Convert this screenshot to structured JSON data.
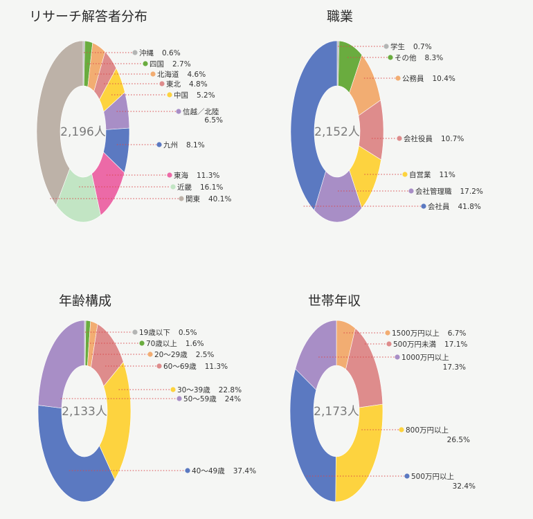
{
  "chart_data": [
    {
      "type": "pie",
      "title": "リサーチ解答者分布",
      "total_label": "2,196人",
      "categories": [
        "沖縄",
        "四国",
        "北海道",
        "東北",
        "中国",
        "信越／北陸",
        "九州",
        "東海",
        "近畿",
        "関東"
      ],
      "values": [
        0.6,
        2.7,
        4.6,
        4.8,
        5.2,
        6.5,
        8.1,
        11.3,
        16.1,
        40.1
      ],
      "value_labels": [
        "0.6%",
        "2.7%",
        "4.6%",
        "4.8%",
        "5.2%",
        "6.5%",
        "8.1%",
        "11.3%",
        "16.1%",
        "40.1%"
      ],
      "colors": [
        "#b3b5b4",
        "#6aac3f",
        "#f2ad72",
        "#de8c8c",
        "#fdd33f",
        "#a88ec6",
        "#5b79c1",
        "#ec6aa7",
        "#c2e5c4",
        "#bdb2a8"
      ],
      "legend_placement": "right"
    },
    {
      "type": "pie",
      "title": "職業",
      "total_label": "2,152人",
      "categories": [
        "学生",
        "その他",
        "公務員",
        "会社役員",
        "自営業",
        "会社管理職",
        "会社員"
      ],
      "values": [
        0.7,
        8.3,
        10.4,
        10.7,
        11,
        17.2,
        41.8
      ],
      "value_labels": [
        "0.7%",
        "8.3%",
        "10.4%",
        "10.7%",
        "11%",
        "17.2%",
        "41.8%"
      ],
      "colors": [
        "#b3b5b4",
        "#6aac3f",
        "#f2ad72",
        "#de8c8c",
        "#fdd33f",
        "#a88ec6",
        "#5b79c1"
      ],
      "legend_placement": "right"
    },
    {
      "type": "pie",
      "title": "年齢構成",
      "total_label": "2,133人",
      "categories": [
        "19歳以下",
        "70歳以上",
        "20～29歳",
        "60～69歳",
        "30～39歳",
        "50～59歳",
        "40～49歳"
      ],
      "values": [
        0.5,
        1.6,
        2.5,
        11.3,
        22.8,
        24,
        37.4
      ],
      "value_labels": [
        "0.5%",
        "1.6%",
        "2.5%",
        "11.3%",
        "22.8%",
        "24%",
        "37.4%"
      ],
      "draw_order": [
        0,
        1,
        2,
        3,
        4,
        6,
        5
      ],
      "colors": [
        "#b3b5b4",
        "#6aac3f",
        "#f2ad72",
        "#de8c8c",
        "#fdd33f",
        "#a88ec6",
        "#5b79c1"
      ],
      "legend_placement": "right"
    },
    {
      "type": "pie",
      "title": "世帯年収",
      "total_label": "2,173人",
      "categories": [
        "1500万円以上",
        "500万円未満",
        "1000万円以上",
        "800万円以上",
        "500万円以上"
      ],
      "values": [
        6.7,
        17.1,
        17.3,
        26.5,
        32.4
      ],
      "value_labels": [
        "6.7%",
        "17.1%",
        "17.3%",
        "26.5%",
        "32.4%"
      ],
      "draw_order": [
        0,
        1,
        3,
        4,
        2
      ],
      "colors": [
        "#f2ad72",
        "#de8c8c",
        "#a88ec6",
        "#fdd33f",
        "#5b79c1"
      ],
      "legend_placement": "right"
    }
  ]
}
